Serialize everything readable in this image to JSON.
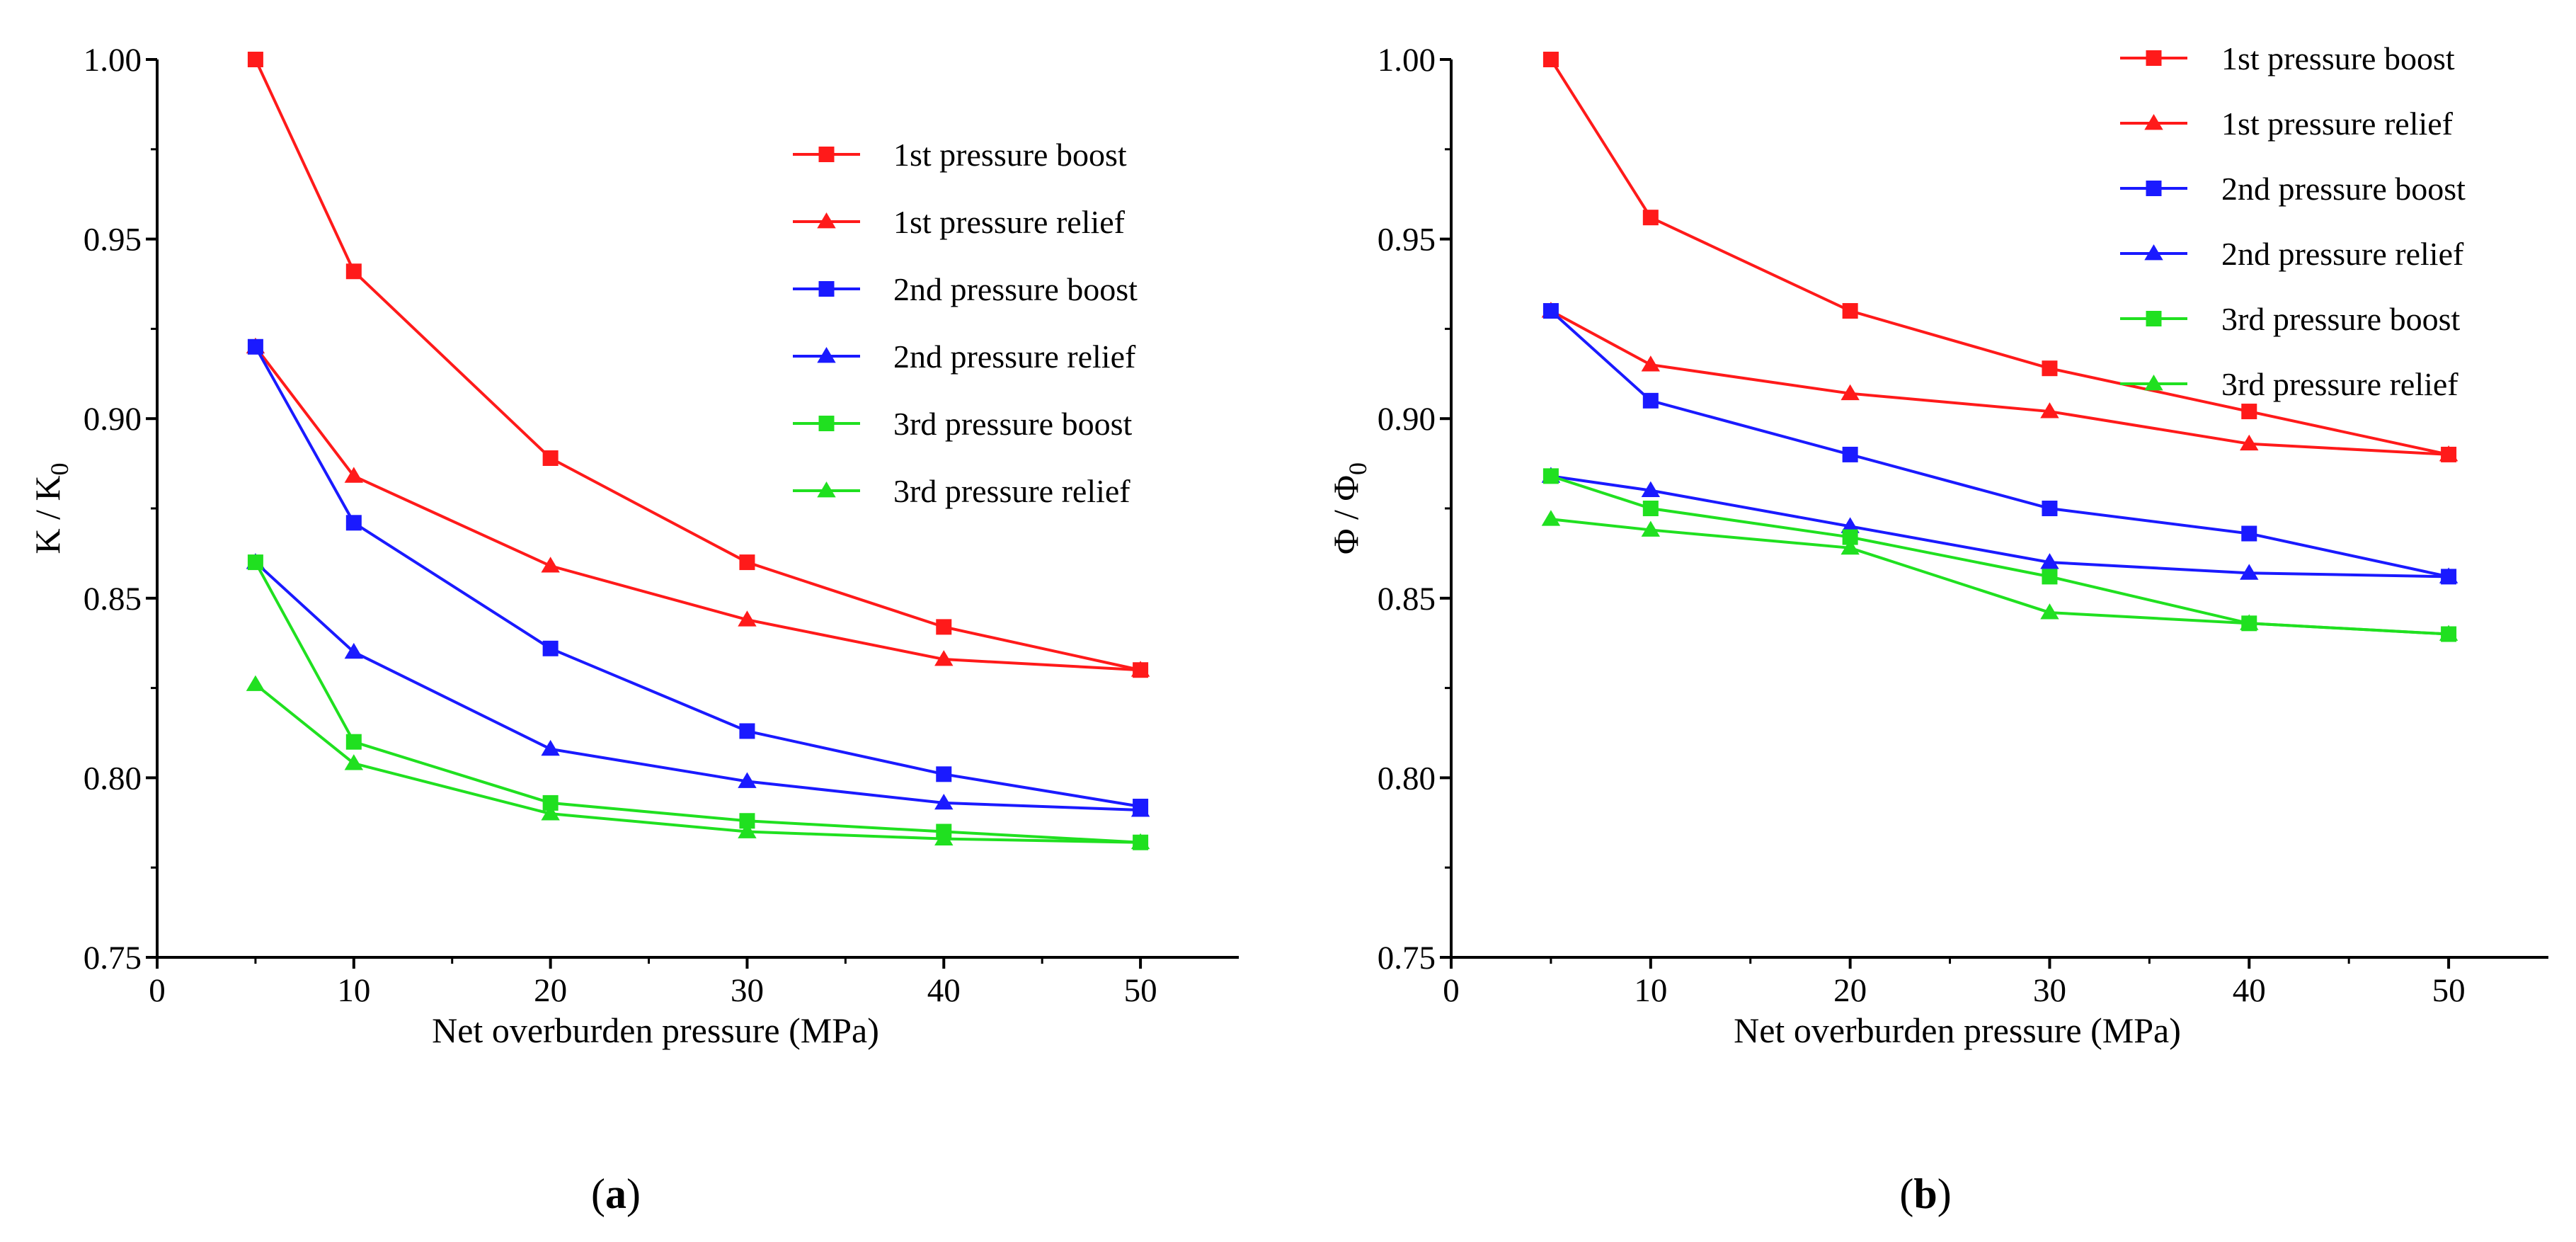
{
  "colors": {
    "red": "#ff1a1a",
    "blue": "#1a1aff",
    "green": "#20e020",
    "axis": "#000000"
  },
  "chart_data": [
    {
      "type": "line",
      "panel_label": "a",
      "xlabel": "Net overburden pressure (MPa)",
      "ylabel": "K / K",
      "ylabel_sub": "0",
      "xlim": [
        0,
        55
      ],
      "ylim": [
        0.75,
        1.0
      ],
      "xticks": [
        0,
        10,
        20,
        30,
        40,
        50
      ],
      "xtick_labels": [
        "0",
        "10",
        "20",
        "30",
        "40",
        "50"
      ],
      "yticks": [
        0.75,
        0.8,
        0.85,
        0.9,
        0.95,
        1.0
      ],
      "ytick_labels": [
        "0.75",
        "0.80",
        "0.85",
        "0.90",
        "0.95",
        "1.00"
      ],
      "legend_position": "top-right, inside",
      "x": [
        5,
        10,
        20,
        30,
        40,
        50
      ],
      "series": [
        {
          "name": "1st pressure boost",
          "color": "red",
          "marker": "square",
          "values": [
            1.0,
            0.941,
            0.889,
            0.86,
            0.842,
            0.83
          ]
        },
        {
          "name": "1st pressure relief",
          "color": "red",
          "marker": "triangle",
          "values": [
            0.92,
            0.884,
            0.859,
            0.844,
            0.833,
            0.83
          ]
        },
        {
          "name": "2nd pressure boost",
          "color": "blue",
          "marker": "square",
          "values": [
            0.92,
            0.871,
            0.836,
            0.813,
            0.801,
            0.792
          ]
        },
        {
          "name": "2nd pressure relief",
          "color": "blue",
          "marker": "triangle",
          "values": [
            0.86,
            0.835,
            0.808,
            0.799,
            0.793,
            0.791
          ]
        },
        {
          "name": "3rd pressure boost",
          "color": "green",
          "marker": "square",
          "values": [
            0.86,
            0.81,
            0.793,
            0.788,
            0.785,
            0.782
          ]
        },
        {
          "name": "3rd pressure relief",
          "color": "green",
          "marker": "triangle",
          "values": [
            0.826,
            0.804,
            0.79,
            0.785,
            0.783,
            0.782
          ]
        }
      ]
    },
    {
      "type": "line",
      "panel_label": "b",
      "xlabel": "Net overburden pressure (MPa)",
      "ylabel": "Φ / Φ",
      "ylabel_sub": "0",
      "xlim": [
        0,
        55
      ],
      "ylim": [
        0.75,
        1.0
      ],
      "xticks": [
        0,
        10,
        20,
        30,
        40,
        50
      ],
      "xtick_labels": [
        "0",
        "10",
        "20",
        "30",
        "40",
        "50"
      ],
      "yticks": [
        0.75,
        0.8,
        0.85,
        0.9,
        0.95,
        1.0
      ],
      "ytick_labels": [
        "0.75",
        "0.80",
        "0.85",
        "0.90",
        "0.95",
        "1.00"
      ],
      "legend_position": "top-right, inside",
      "x": [
        5,
        10,
        20,
        30,
        40,
        50
      ],
      "series": [
        {
          "name": "1st pressure boost",
          "color": "red",
          "marker": "square",
          "values": [
            1.0,
            0.956,
            0.93,
            0.914,
            0.902,
            0.89
          ]
        },
        {
          "name": "1st pressure relief",
          "color": "red",
          "marker": "triangle",
          "values": [
            0.93,
            0.915,
            0.907,
            0.902,
            0.893,
            0.89
          ]
        },
        {
          "name": "2nd pressure boost",
          "color": "blue",
          "marker": "square",
          "values": [
            0.93,
            0.905,
            0.89,
            0.875,
            0.868,
            0.856
          ]
        },
        {
          "name": "2nd pressure relief",
          "color": "blue",
          "marker": "triangle",
          "values": [
            0.884,
            0.88,
            0.87,
            0.86,
            0.857,
            0.856
          ]
        },
        {
          "name": "3rd pressure boost",
          "color": "green",
          "marker": "square",
          "values": [
            0.884,
            0.875,
            0.867,
            0.856,
            0.843,
            0.84
          ]
        },
        {
          "name": "3rd pressure relief",
          "color": "green",
          "marker": "triangle",
          "values": [
            0.872,
            0.869,
            0.864,
            0.846,
            0.843,
            0.84
          ]
        }
      ]
    }
  ]
}
